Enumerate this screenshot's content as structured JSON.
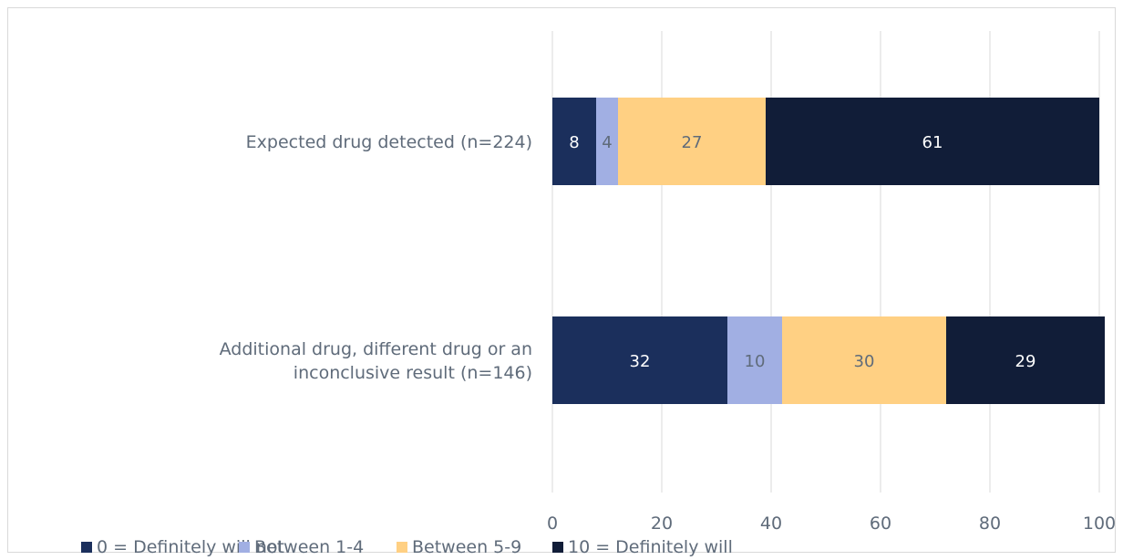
{
  "chart_data": {
    "type": "bar",
    "orientation": "horizontal",
    "stacked": true,
    "categories": [
      "Expected drug detected (n=224)",
      "Additional drug, different drug or an inconclusive result (n=146)"
    ],
    "category_lines": [
      [
        "Expected drug detected (n=224)"
      ],
      [
        "Additional drug, different drug or an",
        "inconclusive result (n=146)"
      ]
    ],
    "series": [
      {
        "name": "0 = Definitely will not",
        "color": "#1b2f5c",
        "label_color": "#ffffff",
        "values": [
          8,
          32
        ]
      },
      {
        "name": "Between 1-4",
        "color": "#a1afe3",
        "label_color": "#5f6b7a",
        "values": [
          4,
          10
        ]
      },
      {
        "name": "Between 5-9",
        "color": "#ffd083",
        "label_color": "#5f6b7a",
        "values": [
          27,
          30
        ]
      },
      {
        "name": "10 = Definitely will",
        "color": "#111d38",
        "label_color": "#ffffff",
        "values": [
          61,
          29
        ]
      }
    ],
    "xlim": [
      0,
      100
    ],
    "xticks": [
      "0",
      "20",
      "40",
      "60",
      "80",
      "100"
    ],
    "grid": true,
    "legend_position": "bottom",
    "title": "",
    "xlabel": "",
    "ylabel": ""
  }
}
